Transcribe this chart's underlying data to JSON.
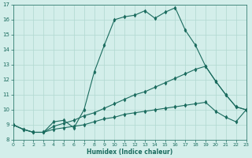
{
  "title": "",
  "xlabel": "Humidex (Indice chaleur)",
  "xlim": [
    0,
    23
  ],
  "ylim": [
    8,
    17
  ],
  "yticks": [
    8,
    9,
    10,
    11,
    12,
    13,
    14,
    15,
    16,
    17
  ],
  "xticks": [
    0,
    1,
    2,
    3,
    4,
    5,
    6,
    7,
    8,
    9,
    10,
    11,
    12,
    13,
    14,
    15,
    16,
    17,
    18,
    19,
    20,
    21,
    22,
    23
  ],
  "bg_color": "#d3eeea",
  "line_color": "#1a6b5e",
  "grid_color": "#b0d8d0",
  "series1_x": [
    0,
    1,
    2,
    3,
    4,
    5,
    6,
    7,
    8,
    9,
    10,
    11,
    12,
    13,
    14,
    15,
    16,
    17,
    18,
    19,
    20,
    21,
    22,
    23
  ],
  "series1_y": [
    9.0,
    8.7,
    8.5,
    8.5,
    9.2,
    9.3,
    8.8,
    10.0,
    12.5,
    14.3,
    16.0,
    16.2,
    16.3,
    16.6,
    16.1,
    16.5,
    16.8,
    15.3,
    14.3,
    12.9,
    11.9,
    11.0,
    10.2,
    10.0
  ],
  "series2_x": [
    0,
    1,
    2,
    3,
    4,
    5,
    6,
    7,
    8,
    9,
    10,
    11,
    12,
    13,
    14,
    15,
    16,
    17,
    18,
    19,
    20,
    21,
    22,
    23
  ],
  "series2_y": [
    9.0,
    8.7,
    8.5,
    8.5,
    8.9,
    9.1,
    9.3,
    9.6,
    9.8,
    10.1,
    10.4,
    10.7,
    11.0,
    11.2,
    11.5,
    11.8,
    12.1,
    12.4,
    12.7,
    12.9,
    11.9,
    11.0,
    10.2,
    10.0
  ],
  "series3_x": [
    0,
    1,
    2,
    3,
    4,
    5,
    6,
    7,
    8,
    9,
    10,
    11,
    12,
    13,
    14,
    15,
    16,
    17,
    18,
    19,
    20,
    21,
    22,
    23
  ],
  "series3_y": [
    9.0,
    8.7,
    8.5,
    8.5,
    8.7,
    8.8,
    8.9,
    9.0,
    9.2,
    9.4,
    9.5,
    9.7,
    9.8,
    9.9,
    10.0,
    10.1,
    10.2,
    10.3,
    10.4,
    10.5,
    9.9,
    9.5,
    9.2,
    10.0
  ]
}
